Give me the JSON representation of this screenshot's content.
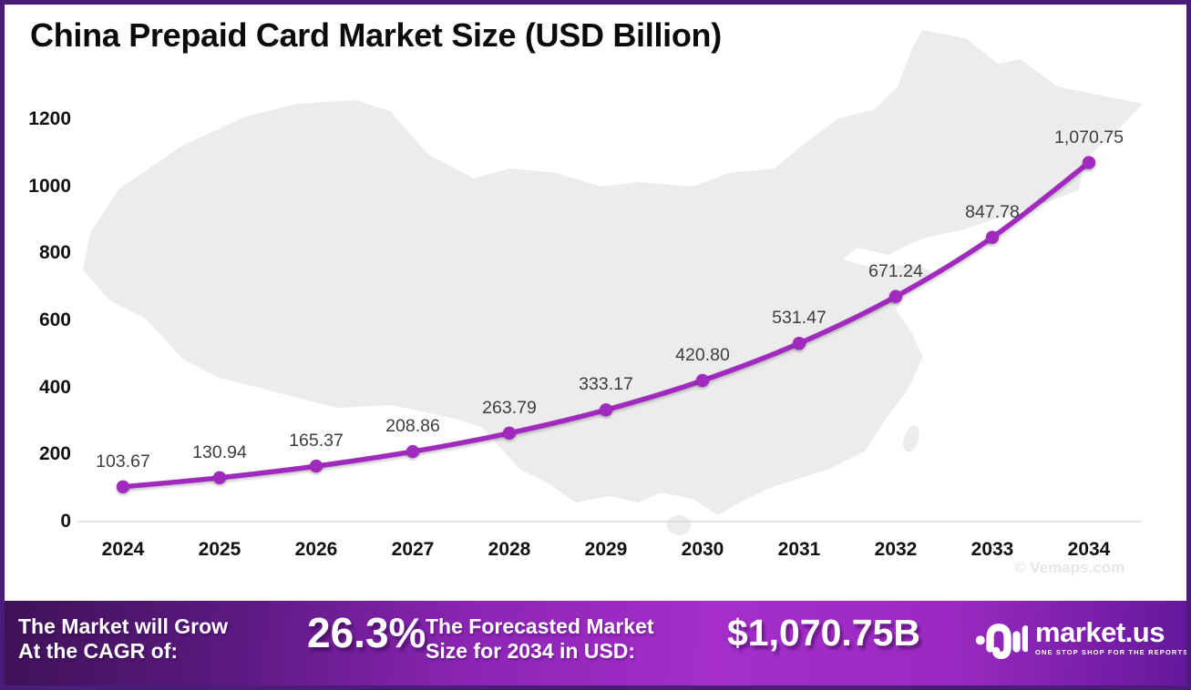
{
  "title": "China Prepaid Card Market Size (USD Billion)",
  "watermark": "© Vemaps.com",
  "chart_data": {
    "type": "line",
    "title": "China Prepaid Card Market Size (USD Billion)",
    "categories": [
      "2024",
      "2025",
      "2026",
      "2027",
      "2028",
      "2029",
      "2030",
      "2031",
      "2032",
      "2033",
      "2034"
    ],
    "values": [
      103.67,
      130.94,
      165.37,
      208.86,
      263.79,
      333.17,
      420.8,
      531.47,
      671.24,
      847.78,
      1070.75
    ],
    "value_labels": [
      "103.67",
      "130.94",
      "165.37",
      "208.86",
      "263.79",
      "333.17",
      "420.80",
      "531.47",
      "671.24",
      "847.78",
      "1,070.75"
    ],
    "yticks": [
      0,
      200,
      400,
      600,
      800,
      1000,
      1200
    ],
    "ylim": [
      0,
      1200
    ],
    "xlabel": "",
    "ylabel": "",
    "grid": false,
    "legend": "none",
    "series_name": "Market Size (USD Billion)"
  },
  "footer": {
    "cagr_label_line1": "The Market will Grow",
    "cagr_label_line2": "At the CAGR of:",
    "cagr_value": "26.3%",
    "forecast_label_line1": "The Forecasted Market",
    "forecast_label_line2": "Size for 2034 in USD:",
    "forecast_value": "$1,070.75B",
    "brand": {
      "name": "market.us",
      "tagline": "ONE STOP SHOP FOR THE REPORTS"
    }
  },
  "colors": {
    "line": "#A12CBE",
    "marker": "#A12CBE",
    "data_label": "#3E3E3E",
    "axis_text": "#111111",
    "axis_line": "#D9D9D9",
    "map_fill": "#ECECEC",
    "page_border": "#4A1E78",
    "footer_gradient": [
      "#3F1257",
      "#5C1A82",
      "#8C25B4",
      "#A52ECB",
      "#9A2AC1",
      "#64189B"
    ]
  }
}
